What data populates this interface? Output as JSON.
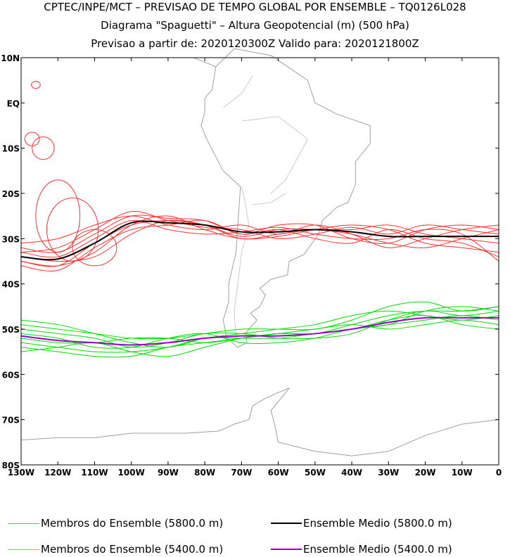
{
  "header": {
    "line1": "CPTEC/INPE/MCT – PREVISAO DE TEMPO GLOBAL POR ENSEMBLE – TQ0126L028",
    "line2": "Diagrama \"Spaguetti\" – Altura Geopotencial (m) (500 hPa)",
    "line3": "Previsao a partir de: 2020120300Z  Valido para: 2020121800Z"
  },
  "axes": {
    "lat_labels": [
      "10N",
      "EQ",
      "10S",
      "20S",
      "30S",
      "40S",
      "50S",
      "60S",
      "70S",
      "80S"
    ],
    "lat_values": [
      10,
      0,
      -10,
      -20,
      -30,
      -40,
      -50,
      -60,
      -70,
      -80
    ],
    "lon_labels": [
      "130W",
      "120W",
      "110W",
      "100W",
      "90W",
      "80W",
      "70W",
      "60W",
      "50W",
      "40W",
      "30W",
      "20W",
      "10W",
      "0"
    ],
    "lon_values": [
      -130,
      -120,
      -110,
      -100,
      -90,
      -80,
      -70,
      -60,
      -50,
      -40,
      -30,
      -20,
      -10,
      0
    ],
    "lon_range": [
      -130,
      0
    ],
    "lat_range": [
      -80,
      10
    ]
  },
  "colors": {
    "red": "#ff3030",
    "green": "#00dd00",
    "black": "#000000",
    "purple": "#9900cc",
    "coast": "#a0a0a0"
  },
  "legend": [
    {
      "label": "Membros do Ensemble (5800.0 m)",
      "color": "#ff7070"
    },
    {
      "label": "Ensemble Medio (5800.0 m)",
      "color": "#000000"
    },
    {
      "label": "Membros do Ensemble (5400.0 m)",
      "color": "#66dd66"
    },
    {
      "label": "Ensemble Medio (5400.0 m)",
      "color": "#9900cc"
    }
  ],
  "series": {
    "lon": [
      -130,
      -120,
      -110,
      -100,
      -90,
      -80,
      -70,
      -60,
      -50,
      -40,
      -30,
      -20,
      -10,
      0
    ],
    "mean_5800": [
      -34,
      -34.5,
      -31,
      -26.5,
      -26.5,
      -27,
      -28.5,
      -28.5,
      -28,
      -28.5,
      -29.5,
      -29.5,
      -29.5,
      -29.5
    ],
    "mean_5400": [
      -51.5,
      -52.5,
      -53,
      -53.5,
      -53,
      -52,
      -51.5,
      -51.5,
      -51,
      -50,
      -48.5,
      -47.5,
      -47.5,
      -47.5
    ],
    "members_5800": [
      [
        -32,
        -33,
        -29,
        -25,
        -25.5,
        -26,
        -29,
        -27,
        -27,
        -30,
        -31,
        -28,
        -27,
        -28
      ],
      [
        -35,
        -36,
        -33,
        -27,
        -25,
        -28,
        -30,
        -29.5,
        -28,
        -27,
        -28,
        -31,
        -32,
        -33
      ],
      [
        -33,
        -32,
        -28,
        -24,
        -26,
        -27.5,
        -28,
        -30,
        -29,
        -27.5,
        -29,
        -27,
        -28,
        -29
      ],
      [
        -36,
        -37,
        -32,
        -28,
        -27,
        -26,
        -29,
        -28,
        -30,
        -31,
        -28,
        -30,
        -31,
        -34
      ],
      [
        -31,
        -30,
        -27,
        -25,
        -27,
        -28,
        -27,
        -29,
        -27,
        -29,
        -32,
        -30,
        -28,
        -27
      ],
      [
        -34,
        -35,
        -34,
        -29,
        -26,
        -27,
        -30,
        -29,
        -28,
        -28,
        -27,
        -29,
        -30,
        -31
      ],
      [
        -33,
        -34,
        -30,
        -26,
        -28,
        -29,
        -28.5,
        -27.5,
        -29,
        -30,
        -30,
        -28,
        -29,
        -35
      ],
      [
        -35,
        -36,
        -31,
        -27,
        -26,
        -27,
        -29.5,
        -28,
        -28,
        -29,
        -31,
        -32,
        -30,
        -28
      ]
    ],
    "members_5400": [
      [
        -49,
        -50,
        -51,
        -52,
        -52,
        -51,
        -50,
        -50,
        -50,
        -48,
        -45,
        -44,
        -46,
        -45
      ],
      [
        -53,
        -54,
        -55,
        -55,
        -54,
        -52,
        -52,
        -52,
        -51,
        -50,
        -49,
        -48,
        -47,
        -48
      ],
      [
        -50,
        -51,
        -52,
        -54,
        -53,
        -51,
        -51,
        -52,
        -52,
        -51,
        -48,
        -46,
        -47,
        -46
      ],
      [
        -54,
        -55,
        -56,
        -56,
        -54,
        -53,
        -52,
        -51,
        -50,
        -49,
        -50,
        -49,
        -48,
        -49
      ],
      [
        -52,
        -53,
        -53,
        -52,
        -52,
        -53,
        -52,
        -51,
        -51,
        -50,
        -48,
        -47,
        -49,
        -50
      ],
      [
        -48,
        -49,
        -51,
        -53,
        -54,
        -52,
        -51,
        -50,
        -49,
        -47,
        -46,
        -47,
        -48,
        -47
      ],
      [
        -51,
        -52,
        -54,
        -54,
        -52,
        -51,
        -53,
        -53,
        -52,
        -50,
        -49,
        -46,
        -45,
        -46
      ],
      [
        -55,
        -54,
        -53,
        -55,
        -56,
        -54,
        -52,
        -51,
        -51,
        -49,
        -47,
        -46,
        -46,
        -45
      ]
    ],
    "loops_5800": [
      {
        "lon": -124,
        "lat": -10,
        "rlon": 3,
        "rlat": 2.5
      },
      {
        "lon": -120,
        "lat": -25,
        "rlon": 6,
        "rlat": 8
      },
      {
        "lon": -116,
        "lat": -28,
        "rlon": 7,
        "rlat": 7
      },
      {
        "lon": -110,
        "lat": -32,
        "rlon": 6,
        "rlat": 4
      },
      {
        "lon": -126,
        "lat": 4,
        "rlon": 1.2,
        "rlat": 0.8
      },
      {
        "lon": -127,
        "lat": -8,
        "rlon": 2,
        "rlat": 1.5
      }
    ]
  }
}
